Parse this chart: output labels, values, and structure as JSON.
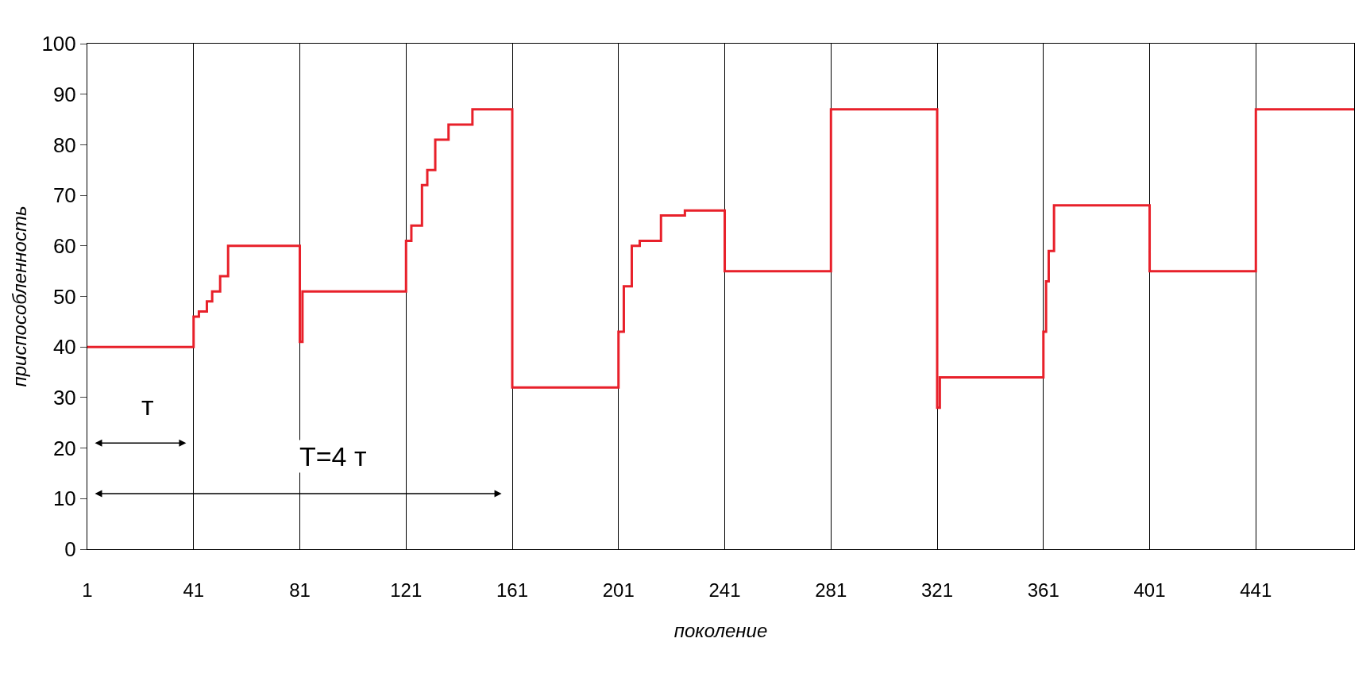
{
  "chart_data": {
    "type": "step",
    "xlabel": "поколение",
    "ylabel": "приспособленность",
    "x": [
      1,
      41,
      43,
      46,
      48,
      51,
      54,
      81,
      82,
      121,
      123,
      127,
      129,
      132,
      137,
      146,
      161,
      201,
      203,
      206,
      209,
      217,
      226,
      241,
      281,
      321,
      322,
      361,
      362,
      363,
      365,
      401,
      441,
      478
    ],
    "series": [
      {
        "color": "#e8202a",
        "values": [
          40,
          46,
          47,
          49,
          51,
          54,
          60,
          41,
          51,
          61,
          64,
          72,
          75,
          81,
          84,
          87,
          32,
          43,
          52,
          60,
          61,
          66,
          67,
          55,
          87,
          28,
          34,
          43,
          53,
          59,
          68,
          55,
          87,
          87
        ]
      }
    ],
    "xlim": [
      1,
      478
    ],
    "xticks": [
      1,
      41,
      81,
      121,
      161,
      201,
      241,
      281,
      321,
      361,
      401,
      441
    ],
    "ylim": [
      0,
      100
    ],
    "yticks": [
      0,
      10,
      20,
      30,
      40,
      50,
      60,
      70,
      80,
      90,
      100
    ],
    "grid": "x",
    "marker": "none",
    "line_style": "solid",
    "annotations": [
      "т",
      "T=4 т"
    ]
  }
}
